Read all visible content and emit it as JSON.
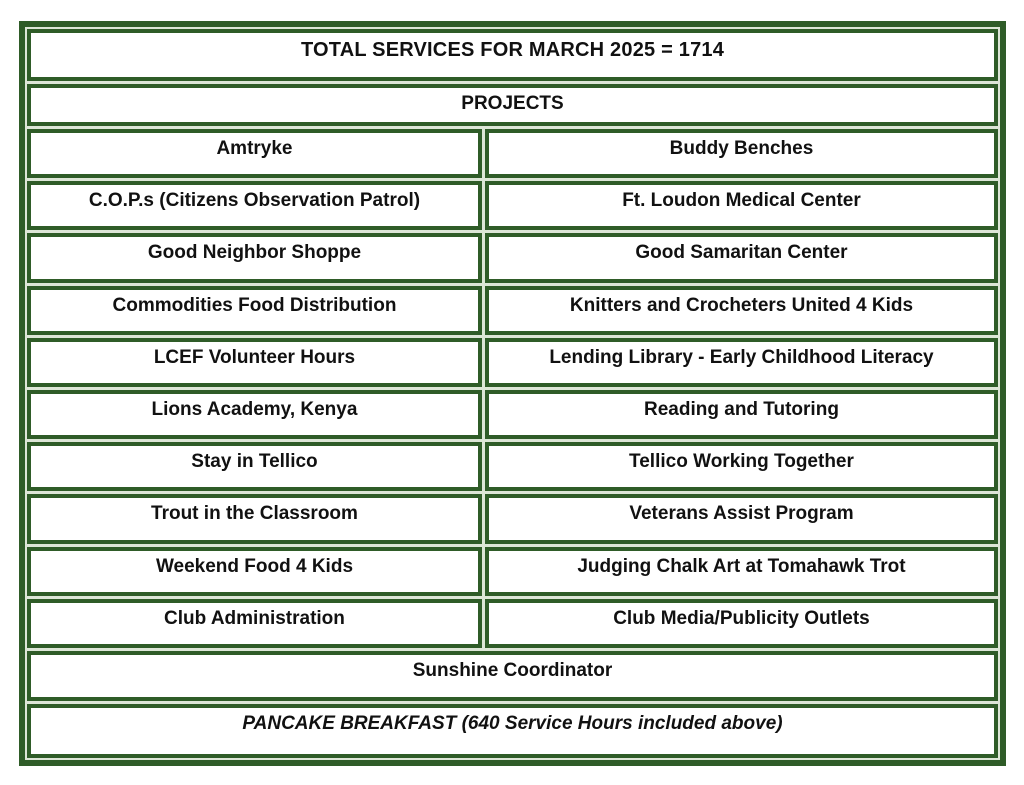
{
  "title": "TOTAL SERVICES FOR MARCH 2025 = 1714",
  "section_header": "PROJECTS",
  "rows": [
    {
      "left": "Amtryke",
      "right": "Buddy Benches"
    },
    {
      "left": "C.O.P.s (Citizens Observation Patrol)",
      "right": "Ft. Loudon Medical Center"
    },
    {
      "left": "Good Neighbor Shoppe",
      "right": "Good Samaritan Center"
    },
    {
      "left": "Commodities Food Distribution",
      "right": "Knitters and Crocheters United 4 Kids"
    },
    {
      "left": "LCEF Volunteer Hours",
      "right": "Lending Library - Early Childhood Literacy"
    },
    {
      "left": "Lions Academy, Kenya",
      "right": "Reading and Tutoring"
    },
    {
      "left": "Stay in Tellico",
      "right": "Tellico Working Together"
    },
    {
      "left": "Trout in the Classroom",
      "right": "Veterans Assist Program"
    },
    {
      "left": "Weekend Food 4 Kids",
      "right": "Judging Chalk Art at Tomahawk Trot"
    },
    {
      "left": "Club Administration",
      "right": "Club Media/Publicity Outlets"
    }
  ],
  "full_width_rows": {
    "sunshine": "Sunshine Coordinator",
    "pancake": "PANCAKE BREAKFAST (640 Service Hours included above)"
  },
  "colors": {
    "border_green": "#2f5c28",
    "cell_background": "#ffffff",
    "text": "#111111"
  }
}
